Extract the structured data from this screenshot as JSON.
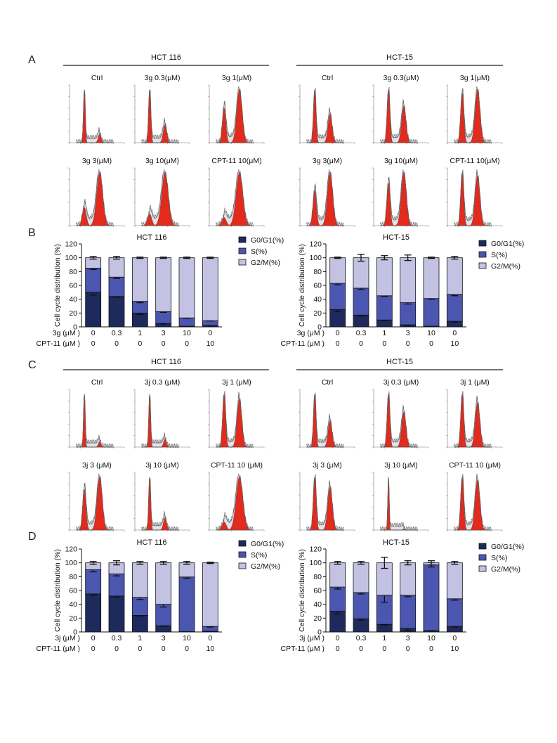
{
  "panel_labels": [
    "A",
    "B",
    "C",
    "D"
  ],
  "colors": {
    "g0g1": "#1f2a5c",
    "s": "#4a56b0",
    "g2m": "#c3c2e2",
    "peak": "#e22a1d",
    "fit": "#c9ccd6",
    "debris": "#3ab0c0"
  },
  "flow_sets": [
    {
      "left_title": "HCT 116",
      "right_title": "HCT-15",
      "left_labels": [
        "Ctrl",
        "3g 0.3(μM)",
        "3g 1(μM)",
        "3g 3(μM)",
        "3g 10(μM)",
        "CPT-11 10(μM)"
      ],
      "right_labels": [
        "Ctrl",
        "3g 0.3(μM)",
        "3g 1(μM)",
        "3g 3(μM)",
        "3g 10(μM)",
        "CPT-11 10(μM)"
      ],
      "left_g2m_fraction": [
        0.15,
        0.27,
        0.63,
        0.78,
        0.86,
        0.91
      ],
      "right_g2m_fraction": [
        0.37,
        0.43,
        0.54,
        0.63,
        0.58,
        0.51
      ]
    },
    {
      "left_title": "HCT 116",
      "right_title": "HCT-15",
      "left_labels": [
        "Ctrl",
        "3j 0.3 (μM)",
        "3j 1 (μM)",
        "3j 3 (μM)",
        "3j 10 (μM)",
        "CPT-11 10 (μM)"
      ],
      "right_labels": [
        "Ctrl",
        "3j 0.3 (μM)",
        "3j 1 (μM)",
        "3j 3 (μM)",
        "3j 10 (μM)",
        "CPT-11 10 (μM)"
      ],
      "left_g2m_fraction": [
        0.1,
        0.14,
        0.5,
        0.59,
        0.2,
        0.91
      ],
      "right_g2m_fraction": [
        0.35,
        0.42,
        0.48,
        0.47,
        0.02,
        0.51
      ]
    }
  ],
  "chart_data": [
    {
      "type": "bar",
      "panel": "B",
      "title": "HCT 116",
      "ylabel": "Cell cycle distribution (%)",
      "ylim": [
        0,
        120
      ],
      "yticks": [
        0,
        20,
        40,
        60,
        80,
        100,
        120
      ],
      "treatment_rows": [
        {
          "label": "3g (μM )",
          "values": [
            "0",
            "0.3",
            "1",
            "3",
            "10",
            "0"
          ]
        },
        {
          "label": "CPT-11 (μM )",
          "values": [
            "0",
            "0",
            "0",
            "0",
            "0",
            "10"
          ]
        }
      ],
      "series": [
        {
          "name": "G0/G1(%)",
          "values": [
            50,
            44,
            20,
            5,
            1,
            2
          ],
          "errors": [
            4,
            1,
            2,
            1,
            0.5,
            0.5
          ]
        },
        {
          "name": "S(%)",
          "values": [
            35,
            28,
            17,
            17,
            12,
            7
          ],
          "errors": [
            2,
            2,
            2,
            1,
            0.5,
            0.5
          ]
        },
        {
          "name": "G2/M(%)",
          "values": [
            15,
            28,
            63,
            78,
            87,
            91
          ],
          "errors": [
            2,
            2,
            1,
            1,
            1,
            1
          ]
        }
      ],
      "legend": "top-right"
    },
    {
      "type": "bar",
      "panel": "B",
      "title": "HCT-15",
      "ylabel": "Cell cycle distribution (%)",
      "ylim": [
        0,
        120
      ],
      "yticks": [
        0,
        20,
        40,
        60,
        80,
        100,
        120
      ],
      "treatment_rows": [
        {
          "label": "3g (μM )",
          "values": [
            "0",
            "0.3",
            "1",
            "3",
            "10",
            "0"
          ]
        },
        {
          "label": "CPT-11 (μM )",
          "values": [
            "0",
            "0",
            "0",
            "0",
            "0",
            "10"
          ]
        }
      ],
      "series": [
        {
          "name": "G0/G1(%)",
          "values": [
            25,
            17,
            10,
            3,
            1,
            8
          ],
          "errors": [
            3,
            1,
            1,
            1,
            0.5,
            1
          ]
        },
        {
          "name": "S(%)",
          "values": [
            38,
            39,
            35,
            32,
            40,
            39
          ],
          "errors": [
            2,
            2,
            1,
            2,
            1,
            2
          ]
        },
        {
          "name": "G2/M(%)",
          "values": [
            37,
            44,
            55,
            65,
            59,
            53
          ],
          "errors": [
            1,
            5,
            3,
            4,
            1,
            2
          ]
        }
      ],
      "legend": "top-right"
    },
    {
      "type": "bar",
      "panel": "D",
      "title": "HCT 116",
      "ylabel": "Cell cycle distribution (%)",
      "ylim": [
        0,
        120
      ],
      "yticks": [
        0,
        20,
        40,
        60,
        80,
        100,
        120
      ],
      "treatment_rows": [
        {
          "label": "3j (μM )",
          "values": [
            "0",
            "0.3",
            "1",
            "3",
            "10",
            "0"
          ]
        },
        {
          "label": "CPT-11 (μM )",
          "values": [
            "0",
            "0",
            "0",
            "0",
            "0",
            "10"
          ]
        }
      ],
      "series": [
        {
          "name": "G0/G1(%)",
          "values": [
            55,
            52,
            24,
            9,
            0.5,
            1
          ],
          "errors": [
            2,
            2,
            1,
            1,
            0.3,
            0.3
          ]
        },
        {
          "name": "S(%)",
          "values": [
            35,
            32,
            26,
            31,
            79,
            7
          ],
          "errors": [
            3,
            3,
            3,
            4,
            2,
            1
          ]
        },
        {
          "name": "G2/M(%)",
          "values": [
            10,
            16,
            50,
            60,
            20.5,
            92
          ],
          "errors": [
            2,
            3,
            2,
            2,
            2,
            1
          ]
        }
      ],
      "legend": "top-right"
    },
    {
      "type": "bar",
      "panel": "D",
      "title": "HCT-15",
      "ylabel": "Cell cycle distribution (%)",
      "ylim": [
        0,
        120
      ],
      "yticks": [
        0,
        20,
        40,
        60,
        80,
        100,
        120
      ],
      "treatment_rows": [
        {
          "label": "3j (μM )",
          "values": [
            "0",
            "0.3",
            "1",
            "3",
            "10",
            "0"
          ]
        },
        {
          "label": "CPT-11 (μM )",
          "values": [
            "0",
            "0",
            "0",
            "0",
            "0",
            "10"
          ]
        }
      ],
      "series": [
        {
          "name": "G0/G1(%)",
          "values": [
            30,
            19,
            11,
            5,
            2,
            8
          ],
          "errors": [
            4,
            2,
            1,
            3,
            0.5,
            1
          ]
        },
        {
          "name": "S(%)",
          "values": [
            35,
            38,
            42,
            48,
            95,
            40
          ],
          "errors": [
            3,
            2,
            10,
            2,
            3,
            2
          ]
        },
        {
          "name": "G2/M(%)",
          "values": [
            35,
            43,
            47,
            47,
            3,
            52
          ],
          "errors": [
            2,
            2,
            8,
            3,
            3,
            2
          ]
        }
      ],
      "legend": "top-right"
    }
  ]
}
